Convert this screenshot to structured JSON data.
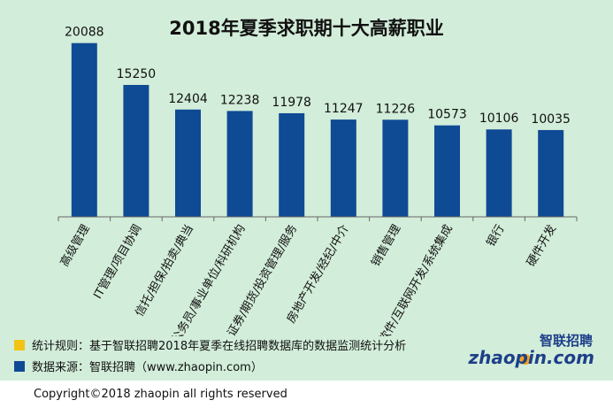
{
  "title": "2018年夏季求职期十大高薪职业",
  "chart_data": {
    "type": "bar",
    "categories": [
      "高级管理",
      "IT管理/项目协调",
      "信托/担保/拍卖/典当",
      "公务员/事业单位/科研机构",
      "证券/期货/投资管理/服务",
      "房地产开发/经纪/中介",
      "销售管理",
      "软件/互联网开发/系统集成",
      "银行",
      "硬件开发"
    ],
    "values": [
      20088,
      15250,
      12404,
      12238,
      11978,
      11247,
      11226,
      10573,
      10106,
      10035
    ],
    "ylim": [
      0,
      22000
    ],
    "bar_color": "#0f4a94",
    "grid": false,
    "title": "2018年夏季求职期十大高薪职业"
  },
  "notes": {
    "rule": "统计规则：基于智联招聘2018年夏季在线招聘数据库的数据监测统计分析",
    "source": "数据来源：智联招聘（www.zhaopin.com）",
    "rule_color": "#f2c314",
    "source_color": "#0f4a94"
  },
  "logo": {
    "cn": "智联招聘",
    "en": "zhaopin.com",
    "icon": "zhaopin-logo"
  },
  "copyright": "Copyright©2018 zhaopin all rights reserved",
  "colors": {
    "background": "#d2edd9",
    "accent": "#0f4a94",
    "logo_dot": "#f4a21a"
  }
}
